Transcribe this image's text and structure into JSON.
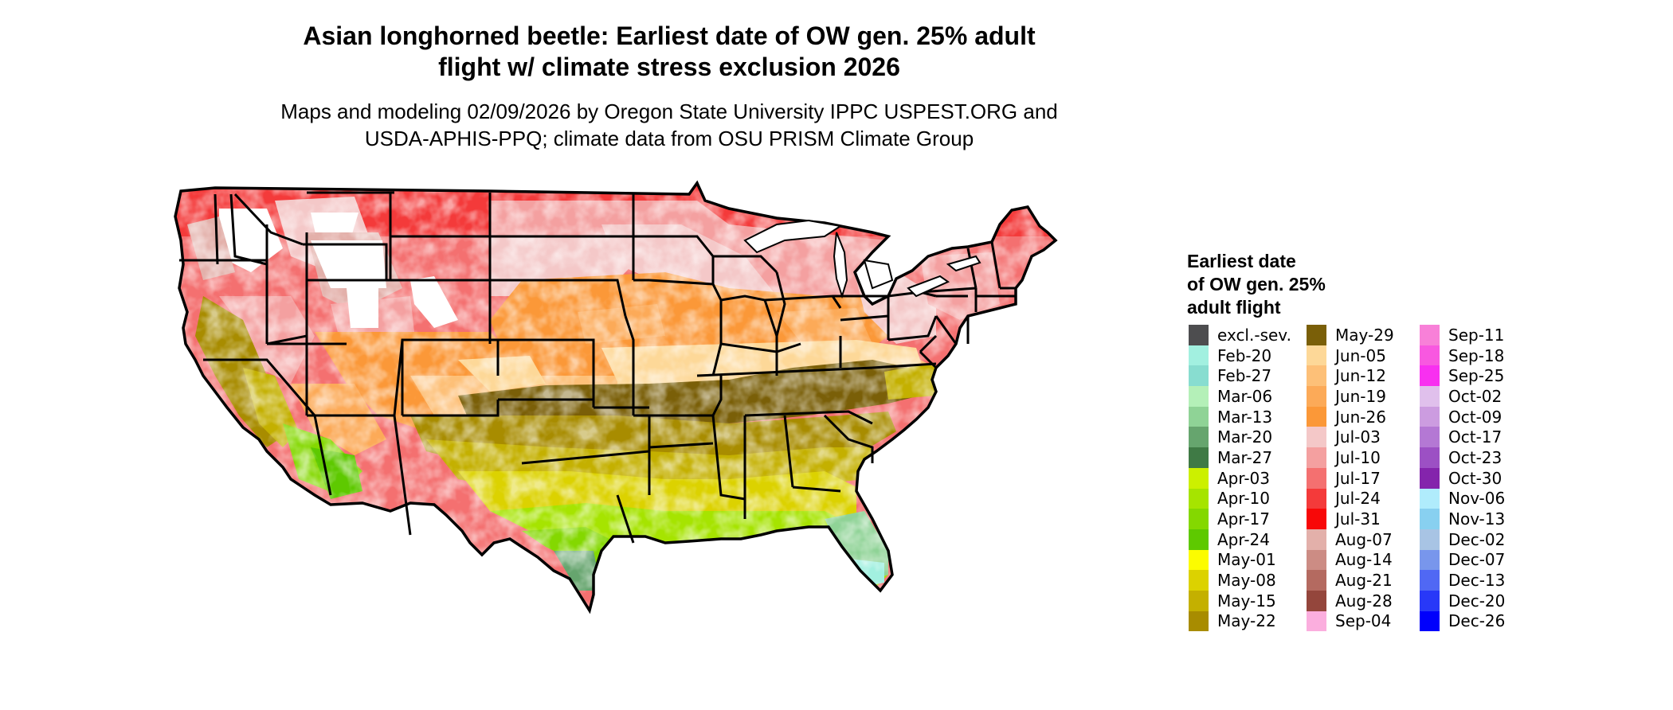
{
  "title_line1": "Asian longhorned beetle: Earliest date of OW gen. 25% adult",
  "title_line2": "flight w/ climate stress exclusion 2026",
  "subtitle_line1": "Maps and modeling 02/09/2026 by Oregon State University IPPC USPEST.ORG and",
  "subtitle_line2": "USDA-APHIS-PPQ; climate data from OSU PRISM Climate Group",
  "legend": {
    "title_line1": "Earliest date",
    "title_line2": "of OW gen. 25%",
    "title_line3": "adult flight",
    "columns": [
      [
        {
          "label": "excl.-sev.",
          "color": "#4d4d4f"
        },
        {
          "label": "Feb-20",
          "color": "#a2f0e0"
        },
        {
          "label": "Feb-27",
          "color": "#88ddd0"
        },
        {
          "label": "Mar-06",
          "color": "#b4f0b8"
        },
        {
          "label": "Mar-13",
          "color": "#8fd396"
        },
        {
          "label": "Mar-20",
          "color": "#66a56e"
        },
        {
          "label": "Mar-27",
          "color": "#3f7a45"
        },
        {
          "label": "Apr-03",
          "color": "#ccf000"
        },
        {
          "label": "Apr-10",
          "color": "#a6e400"
        },
        {
          "label": "Apr-17",
          "color": "#84d800"
        },
        {
          "label": "Apr-24",
          "color": "#5ec900"
        },
        {
          "label": "May-01",
          "color": "#fcfc00"
        },
        {
          "label": "May-08",
          "color": "#dcd200"
        },
        {
          "label": "May-15",
          "color": "#c4b000"
        },
        {
          "label": "May-22",
          "color": "#a88c00"
        }
      ],
      [
        {
          "label": "May-29",
          "color": "#7a5f08"
        },
        {
          "label": "Jun-05",
          "color": "#fdd898"
        },
        {
          "label": "Jun-12",
          "color": "#fdc078"
        },
        {
          "label": "Jun-19",
          "color": "#fcaa58"
        },
        {
          "label": "Jun-26",
          "color": "#fb9838"
        },
        {
          "label": "Jul-03",
          "color": "#f4c8c8"
        },
        {
          "label": "Jul-10",
          "color": "#f4a0a0"
        },
        {
          "label": "Jul-17",
          "color": "#f47070"
        },
        {
          "label": "Jul-24",
          "color": "#f43a3a"
        },
        {
          "label": "Jul-31",
          "color": "#f80808"
        },
        {
          "label": "Aug-07",
          "color": "#e3b0aa"
        },
        {
          "label": "Aug-14",
          "color": "#cc8c84"
        },
        {
          "label": "Aug-21",
          "color": "#b46a60"
        },
        {
          "label": "Aug-28",
          "color": "#94463c"
        },
        {
          "label": "Sep-04",
          "color": "#fbaede"
        }
      ],
      [
        {
          "label": "Sep-11",
          "color": "#f880d8"
        },
        {
          "label": "Sep-18",
          "color": "#f858e0"
        },
        {
          "label": "Sep-25",
          "color": "#f830f0"
        },
        {
          "label": "Oct-02",
          "color": "#e0c0ec"
        },
        {
          "label": "Oct-09",
          "color": "#cc9ce0"
        },
        {
          "label": "Oct-17",
          "color": "#b478d4"
        },
        {
          "label": "Oct-23",
          "color": "#9c50c4"
        },
        {
          "label": "Oct-30",
          "color": "#8424ac"
        },
        {
          "label": "Nov-06",
          "color": "#b0ecfc"
        },
        {
          "label": "Nov-13",
          "color": "#88d0f0"
        },
        {
          "label": "Dec-02",
          "color": "#a8c4e4"
        },
        {
          "label": "Dec-07",
          "color": "#7896ec"
        },
        {
          "label": "Dec-13",
          "color": "#5068f4"
        },
        {
          "label": "Dec-20",
          "color": "#2838f8"
        },
        {
          "label": "Dec-26",
          "color": "#0000fc"
        }
      ]
    ]
  }
}
